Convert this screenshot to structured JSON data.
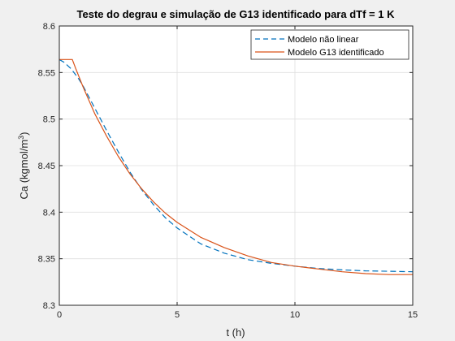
{
  "chart_data": {
    "type": "line",
    "title": "Teste do degrau e simulação de G13 identificado para dTf = 1 K",
    "xlabel": "t (h)",
    "ylabel_base": "Ca (kgmol/m",
    "ylabel_sup": "3",
    "ylabel_close": ")",
    "xlim": [
      0,
      15
    ],
    "ylim": [
      8.3,
      8.6
    ],
    "xticks": [
      0,
      5,
      10,
      15
    ],
    "xtick_labels": [
      "0",
      "5",
      "10",
      "15"
    ],
    "yticks": [
      8.3,
      8.35,
      8.4,
      8.45,
      8.5,
      8.55,
      8.6
    ],
    "ytick_labels": [
      "8.3",
      "8.35",
      "8.4",
      "8.45",
      "8.5",
      "8.55",
      "8.6"
    ],
    "grid": true,
    "legend_position": "top-right",
    "series": [
      {
        "name": "Modelo não linear",
        "color": "#0072bd",
        "style": "dashed",
        "x": [
          0,
          0.2,
          0.5,
          0.8,
          1,
          1.5,
          2,
          2.5,
          3,
          3.5,
          4,
          4.5,
          5,
          6,
          7,
          8,
          9,
          10,
          11,
          12,
          13,
          14,
          15
        ],
        "y": [
          8.564,
          8.561,
          8.554,
          8.544,
          8.536,
          8.512,
          8.488,
          8.465,
          8.443,
          8.424,
          8.408,
          8.394,
          8.383,
          8.366,
          8.356,
          8.349,
          8.345,
          8.342,
          8.3395,
          8.338,
          8.337,
          8.3365,
          8.336
        ]
      },
      {
        "name": "Modelo G13 identificado",
        "color": "#d95319",
        "style": "solid",
        "x": [
          0,
          0.55,
          0.7,
          1,
          1.5,
          2,
          2.5,
          3,
          3.5,
          4,
          4.5,
          5,
          6,
          7,
          8,
          9,
          10,
          11,
          12,
          13,
          14,
          15
        ],
        "y": [
          8.564,
          8.564,
          8.554,
          8.535,
          8.506,
          8.482,
          8.46,
          8.441,
          8.425,
          8.411,
          8.399,
          8.389,
          8.373,
          8.362,
          8.353,
          8.346,
          8.342,
          8.339,
          8.336,
          8.334,
          8.333,
          8.333
        ]
      }
    ]
  }
}
